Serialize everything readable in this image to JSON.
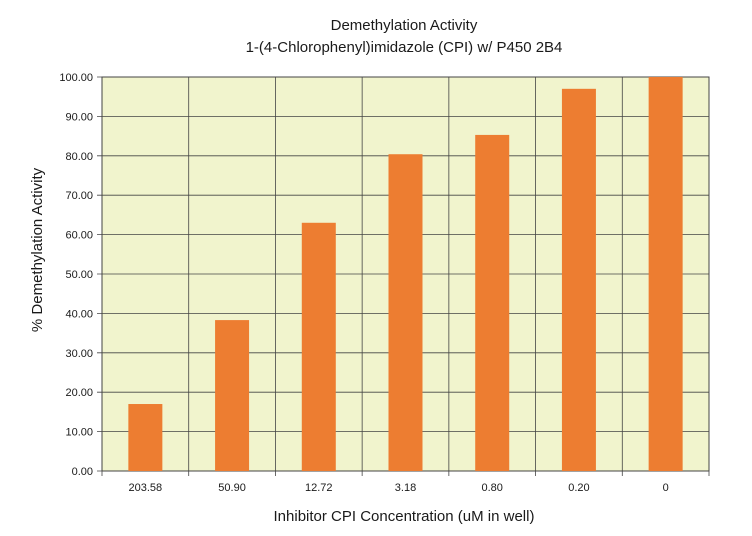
{
  "chart_data": {
    "type": "bar",
    "title": "Demethylation Activity",
    "subtitle": "1-(4-Chlorophenyl)imidazole (CPI) w/ P450 2B4",
    "xlabel": "Inhibitor CPI Concentration (uM in well)",
    "ylabel": "% Demethylation Activity",
    "categories": [
      "203.58",
      "50.90",
      "12.72",
      "3.18",
      "0.80",
      "0.20",
      "0"
    ],
    "values": [
      17.0,
      38.3,
      63.0,
      80.4,
      85.3,
      97.0,
      100.0
    ],
    "ylim": [
      0,
      100
    ],
    "yticks": [
      "0.00",
      "10.00",
      "20.00",
      "30.00",
      "40.00",
      "50.00",
      "60.00",
      "70.00",
      "80.00",
      "90.00",
      "100.00"
    ],
    "grid": true,
    "legend": "none",
    "colors": {
      "bar": "#ed7d31",
      "plot_background": "#f1f4cd",
      "grid": "#444444"
    }
  }
}
